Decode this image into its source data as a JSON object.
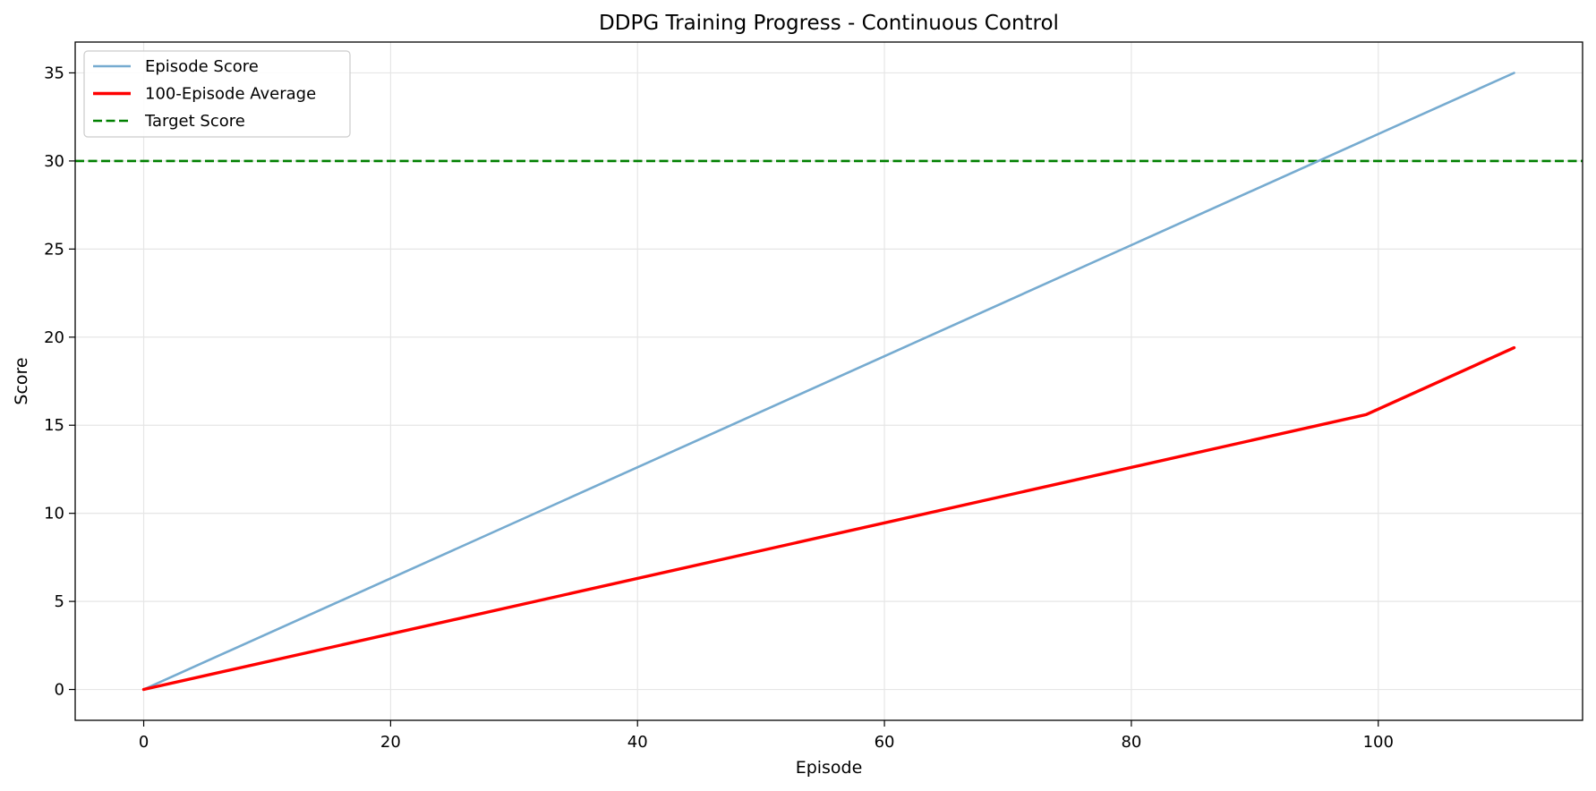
{
  "chart_data": {
    "type": "line",
    "title": "DDPG Training Progress - Continuous Control",
    "xlabel": "Episode",
    "ylabel": "Score",
    "xlim": [
      -5.55,
      116.55
    ],
    "ylim": [
      -1.75,
      36.75
    ],
    "xticks": [
      0,
      20,
      40,
      60,
      80,
      100
    ],
    "yticks": [
      0,
      5,
      10,
      15,
      20,
      25,
      30,
      35
    ],
    "grid": true,
    "legend_position": "top-left",
    "series": [
      {
        "name": "Episode Score",
        "color": "#76abd0",
        "style": "solid",
        "x": [
          0,
          111
        ],
        "y": [
          0,
          35
        ]
      },
      {
        "name": "100-Episode Average",
        "color": "#ff0000",
        "style": "solid",
        "x": [
          0,
          99,
          111
        ],
        "y": [
          0,
          15.6,
          19.4
        ]
      }
    ],
    "reference_lines": [
      {
        "name": "Target Score",
        "color": "#008000",
        "style": "dashed",
        "y": 30
      }
    ]
  }
}
